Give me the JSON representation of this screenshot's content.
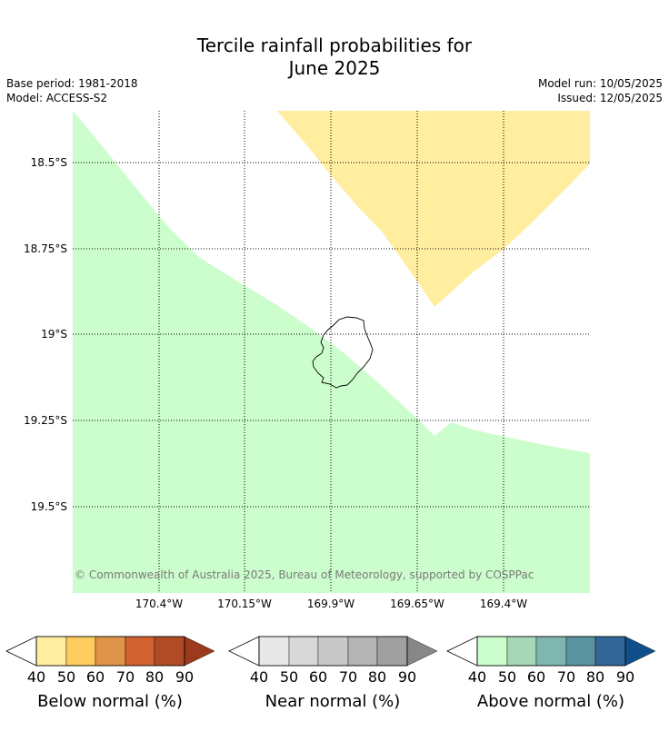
{
  "header": {
    "title_line1": "Tercile rainfall probabilities for",
    "title_line2": "June 2025",
    "base_period": "Base period: 1981-2018",
    "model": "Model: ACCESS-S2",
    "model_run": "Model run: 10/05/2025",
    "issued": "Issued: 12/05/2025"
  },
  "map": {
    "lat_labels": [
      "18.5°S",
      "18.75°S",
      "19°S",
      "19.25°S",
      "19.5°S"
    ],
    "lon_labels": [
      "170.4°W",
      "170.15°W",
      "169.9°W",
      "169.65°W",
      "169.4°W"
    ],
    "colors": {
      "below_region": "#ffeda0",
      "above_region": "#ccfdcc",
      "gridline": "#000000"
    },
    "copyright": "© Commonwealth of Australia 2025, Bureau of Meteorology, supported by COSPPac"
  },
  "legend": {
    "ticks": [
      "40",
      "50",
      "60",
      "70",
      "80",
      "90"
    ],
    "scales": [
      {
        "label": "Below normal (%)",
        "colors": [
          "#ffeda0",
          "#fecc5c",
          "#e09447",
          "#d2622f",
          "#b04b25",
          "#9b3a1d"
        ]
      },
      {
        "label": "Near normal (%)",
        "colors": [
          "#e8e8e8",
          "#d8d8d8",
          "#c8c8c8",
          "#b4b4b4",
          "#a0a0a0",
          "#878787"
        ]
      },
      {
        "label": "Above normal (%)",
        "colors": [
          "#ccfdcc",
          "#a6d8b8",
          "#80b6b0",
          "#5b94a0",
          "#336699",
          "#114f8a"
        ]
      }
    ]
  }
}
